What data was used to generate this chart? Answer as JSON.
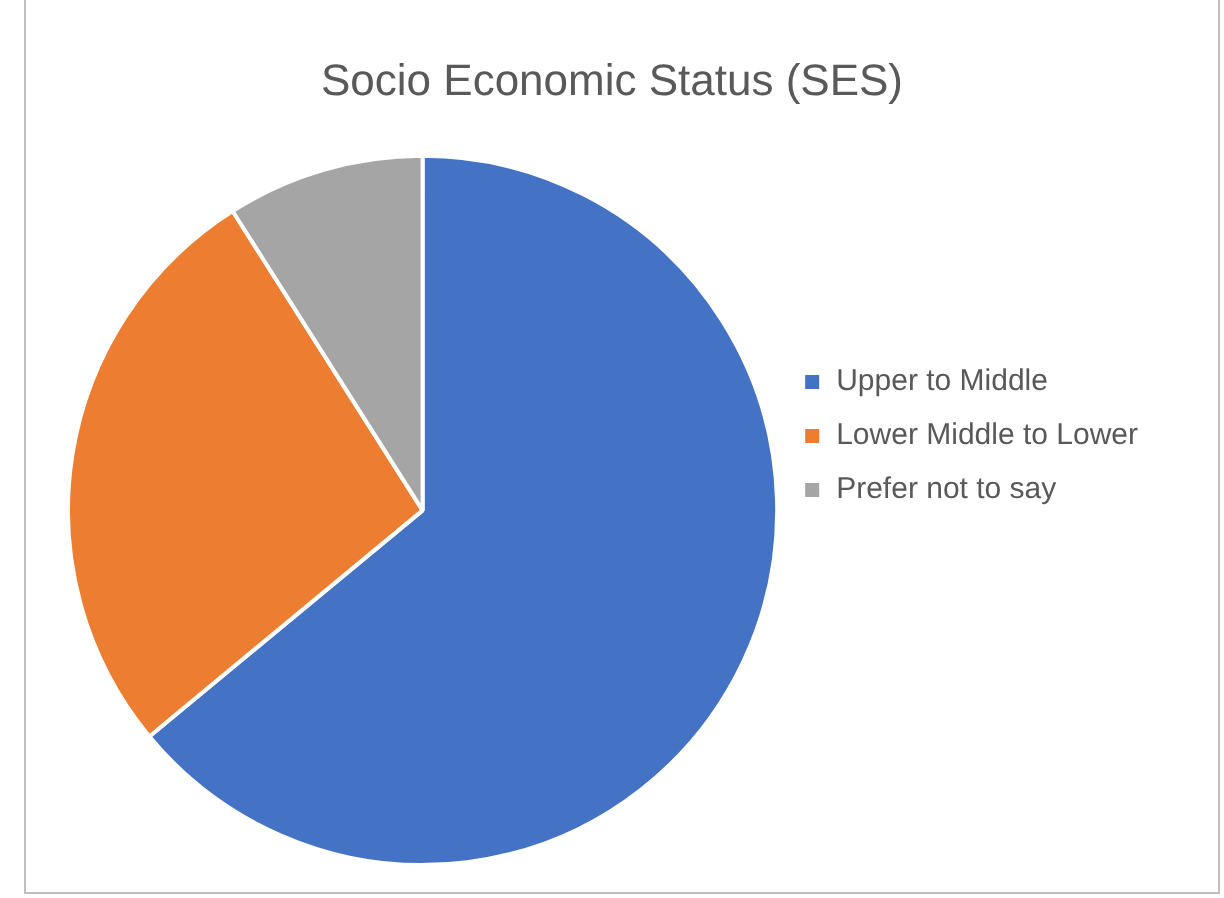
{
  "chart_data": {
    "type": "pie",
    "title": "Socio Economic Status (SES)",
    "categories": [
      "Upper to Middle",
      "Lower Middle to Lower",
      "Prefer not to say"
    ],
    "values": [
      64,
      27,
      9
    ],
    "colors": [
      "#4472c4",
      "#ed7d31",
      "#a5a5a5"
    ],
    "legend": "right"
  }
}
